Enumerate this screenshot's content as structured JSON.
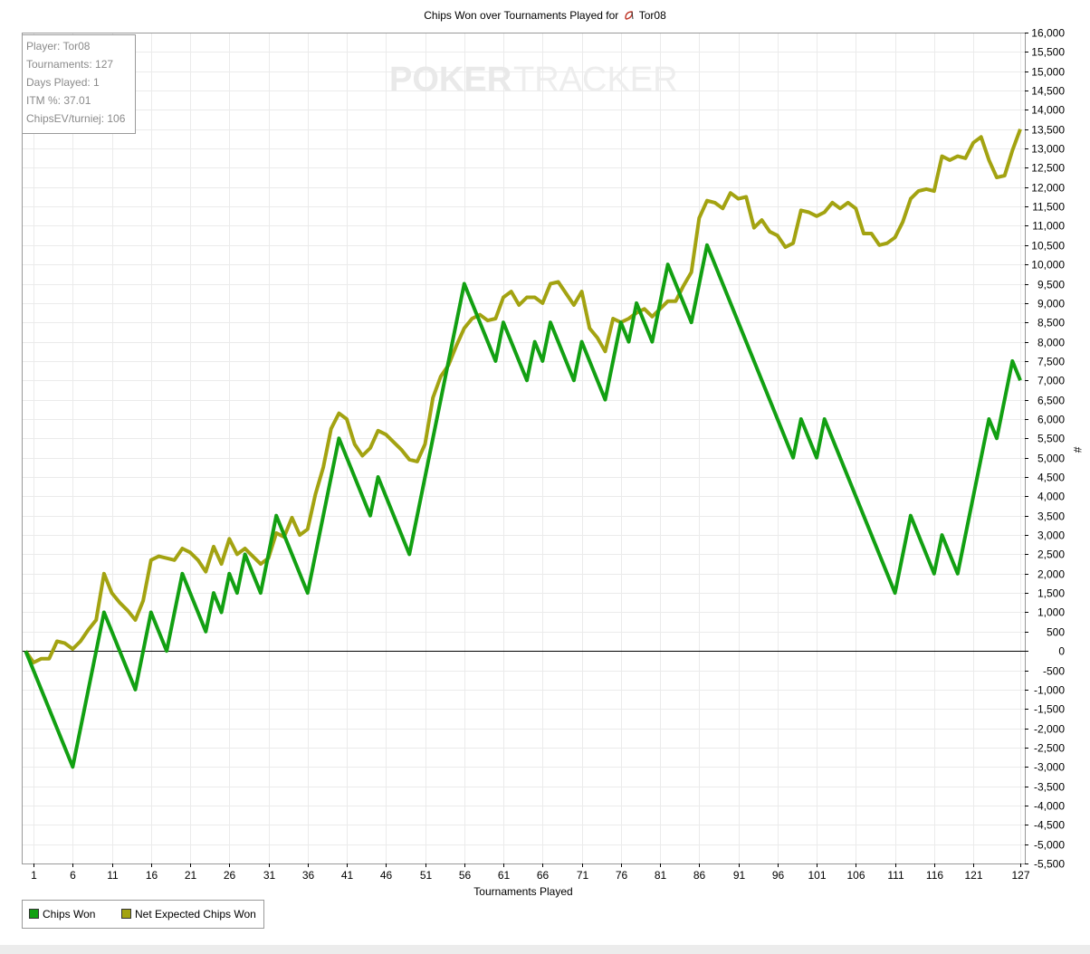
{
  "chart_data": {
    "type": "line",
    "title": "Chips Won over Tournaments Played for",
    "player_name": "Tor08",
    "xlabel": "Tournaments Played",
    "ylabel": "#",
    "xlim": [
      1,
      127
    ],
    "ylim": [
      -5500,
      16000
    ],
    "y_ticks": [
      -5500,
      -5000,
      -4500,
      -4000,
      -3500,
      -3000,
      -2500,
      -2000,
      -1500,
      -1000,
      -500,
      0,
      500,
      1000,
      1500,
      2000,
      2500,
      3000,
      3500,
      4000,
      4500,
      5000,
      5500,
      6000,
      6500,
      7000,
      7500,
      8000,
      8500,
      9000,
      9500,
      10000,
      10500,
      11000,
      11500,
      12000,
      12500,
      13000,
      13500,
      14000,
      14500,
      15000,
      15500,
      16000
    ],
    "y_tick_labels": [
      "-5,500",
      "-5,000",
      "-4,500",
      "-4,000",
      "-3,500",
      "-3,000",
      "-2,500",
      "-2,000",
      "-1,500",
      "-1,000",
      "-500",
      "0",
      "500",
      "1,000",
      "1,500",
      "2,000",
      "2,500",
      "3,000",
      "3,500",
      "4,000",
      "4,500",
      "5,000",
      "5,500",
      "6,000",
      "6,500",
      "7,000",
      "7,500",
      "8,000",
      "8,500",
      "9,000",
      "9,500",
      "10,000",
      "10,500",
      "11,000",
      "11,500",
      "12,000",
      "12,500",
      "13,000",
      "13,500",
      "14,000",
      "14,500",
      "15,000",
      "15,500",
      "16,000"
    ],
    "x_ticks": [
      1,
      6,
      11,
      16,
      21,
      26,
      31,
      36,
      41,
      46,
      51,
      56,
      61,
      66,
      71,
      76,
      81,
      86,
      91,
      96,
      101,
      106,
      111,
      116,
      121,
      127
    ],
    "grid": true,
    "legend_position": "bottom-left",
    "series": [
      {
        "name": "Chips Won",
        "color": "#12a012",
        "points": [
          [
            0,
            0
          ],
          [
            6,
            -3000
          ],
          [
            10,
            1000
          ],
          [
            14,
            -1000
          ],
          [
            16,
            1000
          ],
          [
            18,
            0
          ],
          [
            20,
            2000
          ],
          [
            23,
            500
          ],
          [
            24,
            1500
          ],
          [
            25,
            1000
          ],
          [
            26,
            2000
          ],
          [
            27,
            1500
          ],
          [
            28,
            2500
          ],
          [
            30,
            1500
          ],
          [
            32,
            3500
          ],
          [
            36,
            1500
          ],
          [
            40,
            5500
          ],
          [
            44,
            3500
          ],
          [
            45,
            4500
          ],
          [
            49,
            2500
          ],
          [
            56,
            9500
          ],
          [
            60,
            7500
          ],
          [
            61,
            8500
          ],
          [
            64,
            7000
          ],
          [
            65,
            8000
          ],
          [
            66,
            7500
          ],
          [
            67,
            8500
          ],
          [
            70,
            7000
          ],
          [
            71,
            8000
          ],
          [
            74,
            6500
          ],
          [
            76,
            8500
          ],
          [
            77,
            8000
          ],
          [
            78,
            9000
          ],
          [
            80,
            8000
          ],
          [
            82,
            10000
          ],
          [
            85,
            8500
          ],
          [
            87,
            10500
          ],
          [
            98,
            5000
          ],
          [
            99,
            6000
          ],
          [
            101,
            5000
          ],
          [
            102,
            6000
          ],
          [
            111,
            1500
          ],
          [
            113,
            3500
          ],
          [
            116,
            2000
          ],
          [
            117,
            3000
          ],
          [
            119,
            2000
          ],
          [
            123,
            6000
          ],
          [
            124,
            5500
          ],
          [
            126,
            7500
          ],
          [
            127,
            7000
          ]
        ]
      },
      {
        "name": "Net Expected Chips Won",
        "color": "#a3a311",
        "points": [
          [
            0,
            0
          ],
          [
            1,
            -300
          ],
          [
            2,
            -200
          ],
          [
            3,
            -200
          ],
          [
            4,
            250
          ],
          [
            5,
            200
          ],
          [
            6,
            50
          ],
          [
            7,
            250
          ],
          [
            8,
            550
          ],
          [
            9,
            800
          ],
          [
            10,
            2000
          ],
          [
            11,
            1500
          ],
          [
            12,
            1250
          ],
          [
            13,
            1050
          ],
          [
            14,
            800
          ],
          [
            15,
            1300
          ],
          [
            16,
            2350
          ],
          [
            17,
            2450
          ],
          [
            18,
            2400
          ],
          [
            19,
            2350
          ],
          [
            20,
            2650
          ],
          [
            21,
            2550
          ],
          [
            22,
            2350
          ],
          [
            23,
            2050
          ],
          [
            24,
            2700
          ],
          [
            25,
            2250
          ],
          [
            26,
            2900
          ],
          [
            27,
            2500
          ],
          [
            28,
            2650
          ],
          [
            29,
            2450
          ],
          [
            30,
            2250
          ],
          [
            31,
            2400
          ],
          [
            32,
            3050
          ],
          [
            33,
            2950
          ],
          [
            34,
            3450
          ],
          [
            35,
            3000
          ],
          [
            36,
            3150
          ],
          [
            37,
            4050
          ],
          [
            38,
            4750
          ],
          [
            39,
            5750
          ],
          [
            40,
            6150
          ],
          [
            41,
            6000
          ],
          [
            42,
            5350
          ],
          [
            43,
            5050
          ],
          [
            44,
            5250
          ],
          [
            45,
            5700
          ],
          [
            46,
            5600
          ],
          [
            47,
            5400
          ],
          [
            48,
            5200
          ],
          [
            49,
            4950
          ],
          [
            50,
            4900
          ],
          [
            51,
            5350
          ],
          [
            52,
            6550
          ],
          [
            53,
            7100
          ],
          [
            54,
            7400
          ],
          [
            55,
            7900
          ],
          [
            56,
            8350
          ],
          [
            57,
            8600
          ],
          [
            58,
            8700
          ],
          [
            59,
            8550
          ],
          [
            60,
            8600
          ],
          [
            61,
            9150
          ],
          [
            62,
            9300
          ],
          [
            63,
            8950
          ],
          [
            64,
            9150
          ],
          [
            65,
            9150
          ],
          [
            66,
            9000
          ],
          [
            67,
            9500
          ],
          [
            68,
            9550
          ],
          [
            69,
            9250
          ],
          [
            70,
            8950
          ],
          [
            71,
            9300
          ],
          [
            72,
            8350
          ],
          [
            73,
            8100
          ],
          [
            74,
            7750
          ],
          [
            75,
            8600
          ],
          [
            76,
            8500
          ],
          [
            77,
            8600
          ],
          [
            78,
            8750
          ],
          [
            79,
            8850
          ],
          [
            80,
            8650
          ],
          [
            81,
            8850
          ],
          [
            82,
            9050
          ],
          [
            83,
            9050
          ],
          [
            84,
            9450
          ],
          [
            85,
            9800
          ],
          [
            86,
            11200
          ],
          [
            87,
            11650
          ],
          [
            88,
            11600
          ],
          [
            89,
            11450
          ],
          [
            90,
            11850
          ],
          [
            91,
            11700
          ],
          [
            92,
            11750
          ],
          [
            93,
            10950
          ],
          [
            94,
            11150
          ],
          [
            95,
            10850
          ],
          [
            96,
            10750
          ],
          [
            97,
            10450
          ],
          [
            98,
            10550
          ],
          [
            99,
            11400
          ],
          [
            100,
            11350
          ],
          [
            101,
            11250
          ],
          [
            102,
            11350
          ],
          [
            103,
            11600
          ],
          [
            104,
            11450
          ],
          [
            105,
            11600
          ],
          [
            106,
            11450
          ],
          [
            107,
            10800
          ],
          [
            108,
            10800
          ],
          [
            109,
            10500
          ],
          [
            110,
            10550
          ],
          [
            111,
            10700
          ],
          [
            112,
            11100
          ],
          [
            113,
            11700
          ],
          [
            114,
            11900
          ],
          [
            115,
            11950
          ],
          [
            116,
            11900
          ],
          [
            117,
            12800
          ],
          [
            118,
            12700
          ],
          [
            119,
            12800
          ],
          [
            120,
            12750
          ],
          [
            121,
            13150
          ],
          [
            122,
            13300
          ],
          [
            123,
            12700
          ],
          [
            124,
            12250
          ],
          [
            125,
            12300
          ],
          [
            126,
            12950
          ],
          [
            127,
            13500
          ]
        ]
      }
    ]
  },
  "stats": {
    "player": "Player: Tor08",
    "tournaments": "Tournaments: 127",
    "days_played": "Days Played: 1",
    "itm": "ITM %: 37.01",
    "chips_ev": "ChipsEV/turniej: 106"
  },
  "watermark": {
    "part1": "POKER",
    "part2": "TRACKER"
  },
  "legend": {
    "item1": "Chips Won",
    "item2": "Net Expected Chips Won"
  },
  "icons": {
    "player_icon": "user-icon"
  }
}
